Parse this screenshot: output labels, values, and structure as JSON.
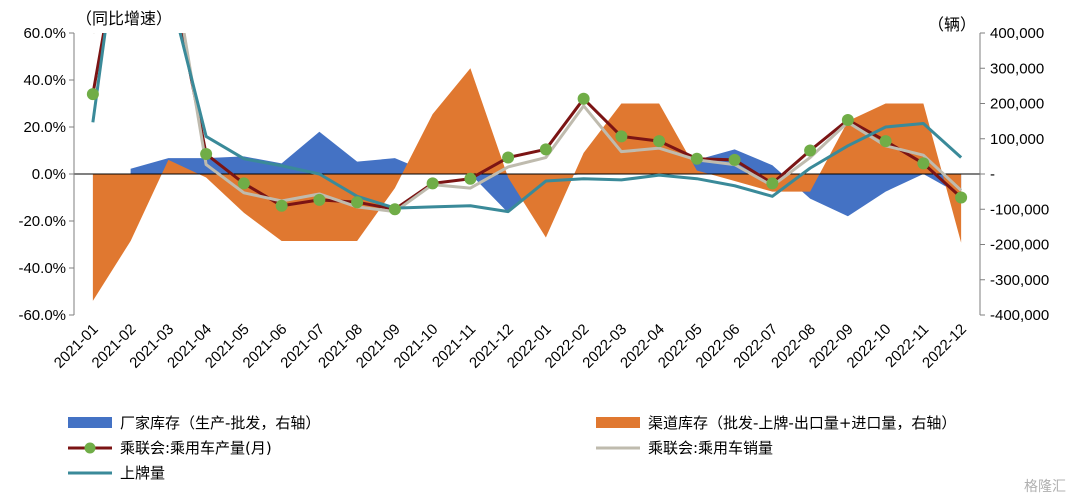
{
  "chart_data": {
    "type": "combo",
    "categories": [
      "2021-01",
      "2021-02",
      "2021-03",
      "2021-04",
      "2021-05",
      "2021-06",
      "2021-07",
      "2021-08",
      "2021-09",
      "2021-10",
      "2021-11",
      "2021-12",
      "2022-01",
      "2022-02",
      "2022-03",
      "2022-04",
      "2022-05",
      "2022-06",
      "2022-07",
      "2022-08",
      "2022-09",
      "2022-10",
      "2022-11",
      "2022-12"
    ],
    "left_axis": {
      "unit_label": "（同比增速）",
      "ylim": [
        -60,
        60
      ],
      "ticks": [
        "60.0%",
        "40.0%",
        "20.0%",
        "0.0%",
        "-20.0%",
        "-40.0%",
        "-60.0%"
      ]
    },
    "right_axis": {
      "unit_label": "（辆）",
      "ylim": [
        -400000,
        400000
      ],
      "ticks": [
        "400,000",
        "300,000",
        "200,000",
        "100,000",
        "-",
        "-100,000",
        "-200,000",
        "-300,000",
        "-400,000"
      ]
    },
    "series": [
      {
        "name": "厂家库存（生产-批发，右轴",
        "kind": "area",
        "axis": "right",
        "color": "#4472C4",
        "values": [
          null,
          15000,
          45000,
          45000,
          50000,
          30000,
          120000,
          35000,
          45000,
          0,
          0,
          -110000,
          -10000,
          0,
          20000,
          10000,
          40000,
          70000,
          25000,
          -70000,
          -120000,
          -50000,
          0,
          -60000
        ]
      },
      {
        "name": "渠道库存（批发-上牌-出口量+进口量，右轴",
        "kind": "area",
        "axis": "right",
        "color": "#E07830",
        "values": [
          -360000,
          -190000,
          40000,
          -10000,
          -110000,
          -190000,
          -190000,
          -190000,
          -40000,
          170000,
          300000,
          -10000,
          -180000,
          60000,
          200000,
          200000,
          10000,
          -20000,
          -50000,
          -50000,
          150000,
          200000,
          200000,
          -195000
        ]
      },
      {
        "name": "乘联会:乘用车产量(月)",
        "kind": "line",
        "axis": "left",
        "color": "#7B1414",
        "marker_color": "#70AD47",
        "values": [
          34,
          125,
          90,
          8.5,
          -4,
          -13.5,
          -11,
          -12,
          -15,
          -4,
          -2,
          7,
          10.5,
          32,
          16,
          14,
          6.5,
          6,
          -4,
          10,
          23,
          14,
          4.5,
          -10
        ]
      },
      {
        "name": "乘联会:乘用车销量",
        "kind": "line",
        "axis": "left",
        "color": "#BFBBAE",
        "values": [
          60,
          130,
          100,
          4,
          -8,
          -11.5,
          -8.5,
          -14,
          -16,
          -4.5,
          -6,
          3,
          7,
          29,
          9.5,
          11,
          6,
          4,
          -5,
          7,
          22,
          12,
          8,
          -7
        ]
      },
      {
        "name": "上牌量",
        "kind": "line",
        "axis": "left",
        "color": "#3A8A99",
        "values": [
          22,
          140,
          80,
          16,
          6.5,
          3.5,
          0,
          -9.5,
          -14.5,
          -14,
          -13.5,
          -16,
          -3,
          -2,
          -2.5,
          -0.5,
          -2,
          -5,
          -9.5,
          2.5,
          12,
          20,
          21.5,
          7
        ]
      }
    ]
  },
  "legend": {
    "factory_inventory": "厂家库存（生产-批发，右轴）",
    "channel_inventory": "渠道库存（批发-上牌-出口量+进口量，右轴）",
    "production": "乘联会:乘用车产量(月)",
    "sales": "乘联会:乘用车销量",
    "registrations": "上牌量"
  },
  "watermark": "格隆汇"
}
